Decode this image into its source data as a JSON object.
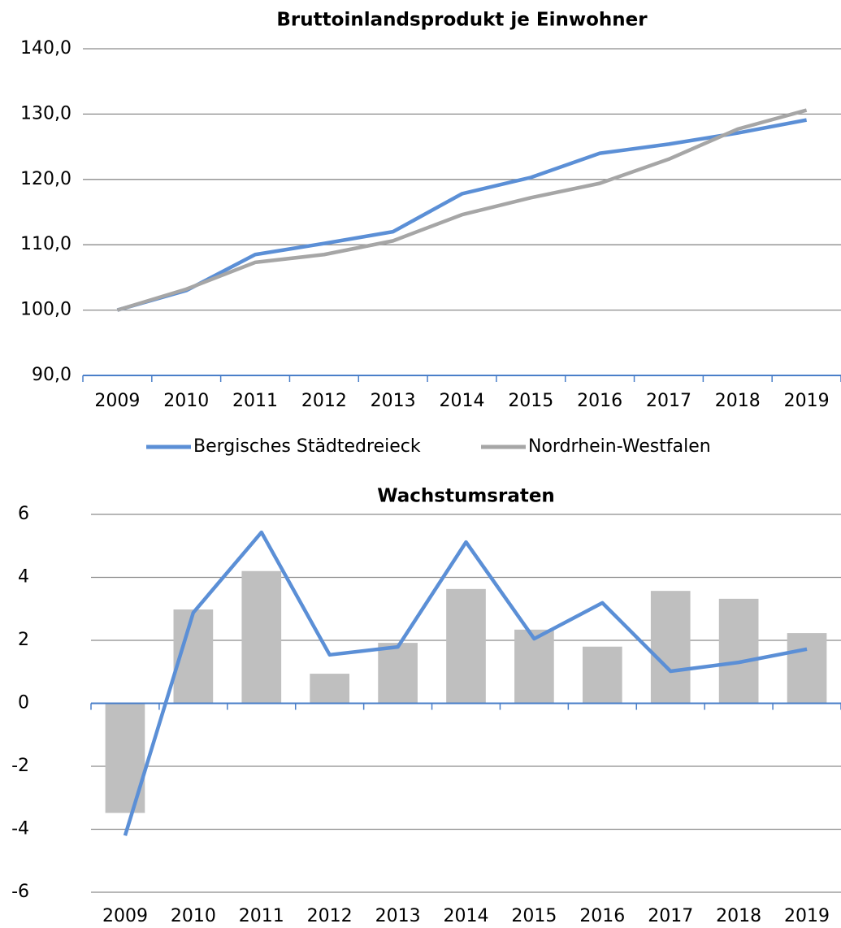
{
  "chart_data": [
    {
      "type": "line",
      "title": "Bruttoinlandsprodukt je Einwohner",
      "categories": [
        "2009",
        "2010",
        "2011",
        "2012",
        "2013",
        "2014",
        "2015",
        "2016",
        "2017",
        "2018",
        "2019"
      ],
      "series": [
        {
          "name": "Bergisches Städtedreieck",
          "color": "#5b8fd6",
          "values": [
            100,
            103.0,
            108.5,
            110.2,
            112.0,
            117.8,
            120.3,
            124.0,
            125.4,
            127.1,
            129.1
          ]
        },
        {
          "name": "Nordrhein-Westfalen",
          "color": "#a6a6a6",
          "values": [
            100,
            103.2,
            107.3,
            108.5,
            110.6,
            114.6,
            117.2,
            119.4,
            123.1,
            127.7,
            130.6
          ]
        }
      ],
      "ylim": [
        90,
        140
      ],
      "yticks": [
        {
          "value": 90,
          "label": "90,0"
        },
        {
          "value": 100,
          "label": "100,0"
        },
        {
          "value": 110,
          "label": "110,0"
        },
        {
          "value": 120,
          "label": "120,0"
        },
        {
          "value": 130,
          "label": "130,0"
        },
        {
          "value": 140,
          "label": "140,0"
        }
      ],
      "grid": true,
      "legend": "bottom"
    },
    {
      "type": "combo",
      "title": "Wachstumsraten",
      "categories": [
        "2009",
        "2010",
        "2011",
        "2012",
        "2013",
        "2014",
        "2015",
        "2016",
        "2017",
        "2018",
        "2019"
      ],
      "series": [
        {
          "type": "bar",
          "color": "#bfbfbf",
          "values": [
            -3.48,
            2.98,
            4.2,
            0.94,
            1.92,
            3.63,
            2.34,
            1.8,
            3.57,
            3.32,
            2.23
          ]
        },
        {
          "type": "line",
          "color": "#5b8fd6",
          "values": [
            -4.2,
            2.88,
            5.43,
            1.54,
            1.79,
            5.12,
            2.05,
            3.19,
            1.02,
            1.3,
            1.72
          ]
        }
      ],
      "ylim": [
        -6,
        6
      ],
      "yticks": [
        -6,
        -4,
        -2,
        0,
        2,
        4,
        6
      ],
      "grid": true
    }
  ]
}
